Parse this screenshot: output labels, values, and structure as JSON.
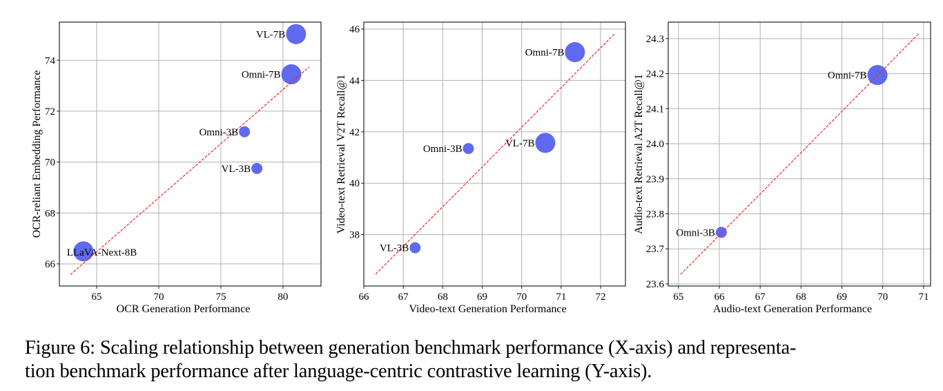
{
  "chart_data": [
    {
      "type": "scatter",
      "title": "",
      "xlabel": "OCR Generation Performance",
      "ylabel": "OCR-reliant Embedding Performance",
      "xlim": [
        62.0,
        83.06
      ],
      "ylim": [
        65.13,
        75.5
      ],
      "xticks": [
        65,
        70,
        75,
        80
      ],
      "yticks": [
        66,
        68,
        70,
        72,
        74
      ],
      "grid": true,
      "marker_color": "#5662f0",
      "points": [
        {
          "label": "VL-7B",
          "x": 81.05,
          "y": 75.03,
          "size": "large"
        },
        {
          "label": "Omni-7B",
          "x": 80.67,
          "y": 73.45,
          "size": "large"
        },
        {
          "label": "Omni-3B",
          "x": 76.9,
          "y": 71.19,
          "size": "small"
        },
        {
          "label": "VL-3B",
          "x": 77.9,
          "y": 69.75,
          "size": "small"
        },
        {
          "label": "LLaVA-Next-8B",
          "x": 63.94,
          "y": 66.49,
          "size": "large"
        }
      ],
      "trendline": {
        "style": "dashed",
        "color": "#e8262a",
        "x": [
          62.9,
          82.1
        ],
        "y": [
          65.58,
          73.74
        ]
      }
    },
    {
      "type": "scatter",
      "title": "",
      "xlabel": "Video-text Generation Performance",
      "ylabel": "Video-text Retrieval V2T Recall@1",
      "xlim": [
        66.0,
        72.63
      ],
      "ylim": [
        36.0,
        46.27
      ],
      "xticks": [
        66,
        67,
        68,
        69,
        70,
        71,
        72
      ],
      "yticks": [
        38,
        40,
        42,
        44,
        46
      ],
      "grid": true,
      "marker_color": "#5662f0",
      "points": [
        {
          "label": "Omni-7B",
          "x": 71.35,
          "y": 45.1,
          "size": "large"
        },
        {
          "label": "VL-7B",
          "x": 70.6,
          "y": 41.57,
          "size": "large"
        },
        {
          "label": "Omni-3B",
          "x": 68.65,
          "y": 41.35,
          "size": "small"
        },
        {
          "label": "VL-3B",
          "x": 67.3,
          "y": 37.49,
          "size": "small"
        }
      ],
      "trendline": {
        "style": "dashed",
        "color": "#e8262a",
        "x": [
          66.3,
          72.35
        ],
        "y": [
          36.46,
          45.81
        ]
      }
    },
    {
      "type": "scatter",
      "title": "",
      "xlabel": "Audio-text Generation Performance",
      "ylabel": "Audio-text Retrieval A2T Recall@1",
      "xlim": [
        64.75,
        71.17
      ],
      "ylim": [
        23.594,
        24.347
      ],
      "xticks": [
        65,
        66,
        67,
        68,
        69,
        70,
        71
      ],
      "yticks": [
        23.6,
        23.7,
        23.8,
        23.9,
        24.0,
        24.1,
        24.2,
        24.3
      ],
      "ytick_labels": [
        "23.6",
        "23.7",
        "23.8",
        "23.9",
        "24.0",
        "24.1",
        "24.2",
        "24.3"
      ],
      "grid": true,
      "marker_color": "#5662f0",
      "points": [
        {
          "label": "Omni-7B",
          "x": 69.87,
          "y": 24.196,
          "size": "large"
        },
        {
          "label": "Omni-3B",
          "x": 66.05,
          "y": 23.747,
          "size": "small"
        }
      ],
      "trendline": {
        "style": "dashed",
        "color": "#e8262a",
        "x": [
          65.05,
          70.88
        ],
        "y": [
          23.627,
          24.314
        ]
      }
    }
  ],
  "caption": {
    "line1": "Figure 6: Scaling relationship between generation benchmark performance (X-axis) and representa-",
    "line2": "tion benchmark performance after language-centric contrastive learning (Y-axis)."
  }
}
